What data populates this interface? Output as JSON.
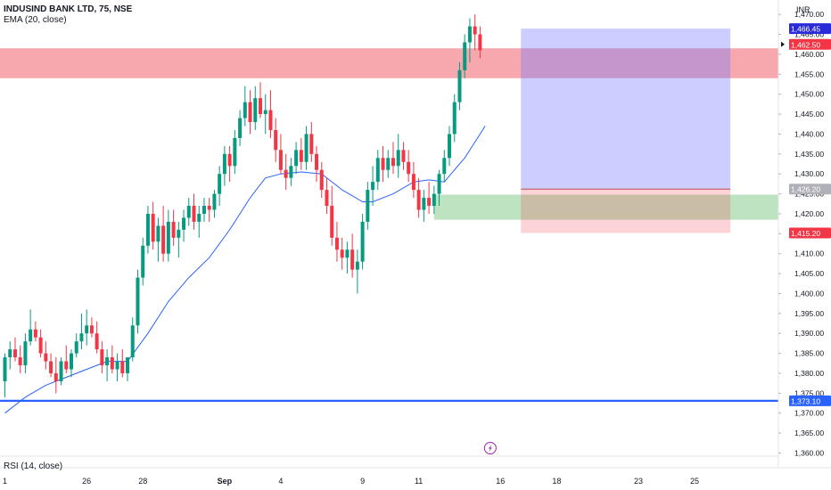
{
  "header": {
    "title": "INDUSIND BANK LTD, 75, NSE",
    "ema_label": "EMA (20, close)",
    "rsi_label": "RSI (14, close)",
    "currency": "INR"
  },
  "chart_data": {
    "type": "candlestick",
    "title": "INDUSIND BANK LTD, 75, NSE",
    "indicators": [
      "EMA (20, close)",
      "RSI (14, close)"
    ],
    "ylim": [
      1360,
      1472.5
    ],
    "y_ticks": [
      "1,470.00",
      "1,465.00",
      "1,460.00",
      "1,455.00",
      "1,450.00",
      "1,445.00",
      "1,440.00",
      "1,435.00",
      "1,430.00",
      "1,425.00",
      "1,420.00",
      "1,415.00",
      "1,410.00",
      "1,405.00",
      "1,400.00",
      "1,395.00",
      "1,390.00",
      "1,385.00",
      "1,380.00",
      "1,375.00",
      "1,370.00",
      "1,365.00",
      "1,360.00"
    ],
    "x_ticks": [
      {
        "label": "1",
        "bar": 0
      },
      {
        "label": "26",
        "bar": 16
      },
      {
        "label": "28",
        "bar": 27
      },
      {
        "label": "Sep",
        "bar": 43
      },
      {
        "label": "4",
        "bar": 54
      },
      {
        "label": "9",
        "bar": 70
      },
      {
        "label": "11",
        "bar": 81
      },
      {
        "label": "16",
        "bar": 97
      },
      {
        "label": "18",
        "bar": 108
      },
      {
        "label": "23",
        "bar": 124
      },
      {
        "label": "25",
        "bar": 135
      }
    ],
    "price_labels": [
      {
        "value": 1466.45,
        "text": "1,466.45",
        "color": "#2a2ad9"
      },
      {
        "value": 1462.5,
        "text": "1,462.50",
        "color": "#f23645"
      },
      {
        "value": 1426.2,
        "text": "1,426.20",
        "color": "#b0b0b8"
      },
      {
        "value": 1415.2,
        "text": "1,415.20",
        "color": "#f23645"
      },
      {
        "value": 1373.1,
        "text": "1,373.10",
        "color": "#2962ff"
      }
    ],
    "horizontal_line": {
      "value": 1373.1,
      "color": "#2962ff"
    },
    "supply_zone": {
      "from": 1454,
      "to": 1461.5,
      "bar_start": 0,
      "color": "#f5a3aa"
    },
    "demand_zone": {
      "from": 1418.5,
      "to": 1424.8,
      "bar_start": 84,
      "color": "#b3deb6"
    },
    "position": {
      "entry": 1426.2,
      "stop": 1415.2,
      "target": 1466.45,
      "bar_start": 101,
      "bar_end": 142
    },
    "colors": {
      "up": "#089981",
      "down": "#f23645",
      "ema": "#2962ff"
    },
    "candles": [
      [
        1378,
        1385,
        1374,
        1384
      ],
      [
        1384,
        1388,
        1381,
        1386
      ],
      [
        1386,
        1389,
        1383,
        1384
      ],
      [
        1384,
        1387,
        1380,
        1382
      ],
      [
        1382,
        1390,
        1380,
        1388
      ],
      [
        1388,
        1396,
        1387,
        1391
      ],
      [
        1391,
        1393,
        1388,
        1389
      ],
      [
        1389,
        1391,
        1384,
        1385
      ],
      [
        1385,
        1388,
        1381,
        1383
      ],
      [
        1383,
        1385,
        1379,
        1380
      ],
      [
        1380,
        1384,
        1375,
        1378
      ],
      [
        1378,
        1384,
        1377,
        1383
      ],
      [
        1383,
        1387,
        1380,
        1381
      ],
      [
        1381,
        1386,
        1379,
        1385
      ],
      [
        1385,
        1390,
        1384,
        1388
      ],
      [
        1388,
        1395,
        1386,
        1390
      ],
      [
        1390,
        1396,
        1387,
        1392
      ],
      [
        1392,
        1394,
        1389,
        1390
      ],
      [
        1390,
        1393,
        1385,
        1386
      ],
      [
        1386,
        1388,
        1380,
        1382
      ],
      [
        1382,
        1386,
        1378,
        1384
      ],
      [
        1384,
        1387,
        1380,
        1381
      ],
      [
        1381,
        1385,
        1378,
        1383
      ],
      [
        1383,
        1386,
        1379,
        1380
      ],
      [
        1380,
        1384,
        1378,
        1384
      ],
      [
        1384,
        1394,
        1383,
        1392
      ],
      [
        1392,
        1406,
        1390,
        1404
      ],
      [
        1404,
        1414,
        1402,
        1412
      ],
      [
        1412,
        1422,
        1410,
        1420
      ],
      [
        1420,
        1423,
        1411,
        1413
      ],
      [
        1413,
        1419,
        1408,
        1417
      ],
      [
        1417,
        1422,
        1408,
        1410
      ],
      [
        1410,
        1421,
        1408,
        1418
      ],
      [
        1418,
        1421,
        1412,
        1414
      ],
      [
        1414,
        1418,
        1409,
        1416
      ],
      [
        1416,
        1421,
        1413,
        1419
      ],
      [
        1419,
        1424,
        1417,
        1422
      ],
      [
        1422,
        1425,
        1416,
        1418
      ],
      [
        1418,
        1422,
        1414,
        1420
      ],
      [
        1420,
        1424,
        1418,
        1422
      ],
      [
        1422,
        1424,
        1418,
        1421
      ],
      [
        1421,
        1426,
        1419,
        1425
      ],
      [
        1425,
        1432,
        1422,
        1430
      ],
      [
        1430,
        1437,
        1427,
        1435
      ],
      [
        1435,
        1437,
        1428,
        1432
      ],
      [
        1432,
        1441,
        1430,
        1439
      ],
      [
        1439,
        1446,
        1437,
        1444
      ],
      [
        1444,
        1452,
        1442,
        1448
      ],
      [
        1448,
        1451,
        1440,
        1443
      ],
      [
        1443,
        1452,
        1441,
        1449
      ],
      [
        1449,
        1453,
        1444,
        1445
      ],
      [
        1445,
        1450,
        1440,
        1446
      ],
      [
        1446,
        1451,
        1439,
        1441
      ],
      [
        1441,
        1444,
        1433,
        1436
      ],
      [
        1436,
        1440,
        1430,
        1431
      ],
      [
        1431,
        1435,
        1426,
        1429
      ],
      [
        1429,
        1434,
        1427,
        1432
      ],
      [
        1432,
        1438,
        1430,
        1436
      ],
      [
        1436,
        1439,
        1431,
        1433
      ],
      [
        1433,
        1442,
        1431,
        1440
      ],
      [
        1440,
        1443,
        1433,
        1435
      ],
      [
        1435,
        1437,
        1428,
        1431
      ],
      [
        1431,
        1433,
        1424,
        1426
      ],
      [
        1426,
        1429,
        1420,
        1422
      ],
      [
        1422,
        1427,
        1412,
        1414
      ],
      [
        1414,
        1418,
        1408,
        1411
      ],
      [
        1411,
        1414,
        1406,
        1409
      ],
      [
        1409,
        1413,
        1405,
        1411
      ],
      [
        1411,
        1415,
        1404,
        1406
      ],
      [
        1406,
        1411,
        1400,
        1408
      ],
      [
        1408,
        1420,
        1406,
        1418
      ],
      [
        1418,
        1428,
        1416,
        1426
      ],
      [
        1426,
        1432,
        1422,
        1428
      ],
      [
        1428,
        1436,
        1426,
        1434
      ],
      [
        1434,
        1437,
        1428,
        1431
      ],
      [
        1431,
        1436,
        1429,
        1434
      ],
      [
        1434,
        1438,
        1430,
        1432
      ],
      [
        1432,
        1440,
        1429,
        1436
      ],
      [
        1436,
        1438,
        1431,
        1433
      ],
      [
        1433,
        1436,
        1428,
        1430
      ],
      [
        1430,
        1433,
        1424,
        1426
      ],
      [
        1426,
        1429,
        1419,
        1421
      ],
      [
        1421,
        1426,
        1418,
        1424
      ],
      [
        1424,
        1428,
        1420,
        1422
      ],
      [
        1422,
        1427,
        1420,
        1425
      ],
      [
        1425,
        1431,
        1422,
        1430
      ],
      [
        1430,
        1436,
        1428,
        1434
      ],
      [
        1434,
        1442,
        1432,
        1440
      ],
      [
        1440,
        1450,
        1438,
        1448
      ],
      [
        1448,
        1458,
        1446,
        1456
      ],
      [
        1456,
        1465,
        1454,
        1463
      ],
      [
        1463,
        1469,
        1458,
        1467
      ],
      [
        1467,
        1470,
        1461,
        1465
      ],
      [
        1465,
        1467,
        1459,
        1461
      ]
    ],
    "ema": [
      [
        0,
        1370
      ],
      [
        4,
        1374
      ],
      [
        8,
        1377
      ],
      [
        12,
        1379
      ],
      [
        16,
        1381
      ],
      [
        20,
        1383
      ],
      [
        24,
        1383
      ],
      [
        28,
        1390
      ],
      [
        32,
        1398
      ],
      [
        36,
        1404
      ],
      [
        40,
        1409
      ],
      [
        44,
        1416
      ],
      [
        48,
        1424
      ],
      [
        51,
        1429
      ],
      [
        54,
        1430
      ],
      [
        58,
        1430.5
      ],
      [
        62,
        1430
      ],
      [
        66,
        1426
      ],
      [
        70,
        1423
      ],
      [
        72,
        1423
      ],
      [
        76,
        1425
      ],
      [
        80,
        1428
      ],
      [
        83,
        1428.5
      ],
      [
        86,
        1428
      ],
      [
        88,
        1431
      ],
      [
        90,
        1434
      ],
      [
        92,
        1438
      ],
      [
        94,
        1442
      ]
    ]
  }
}
